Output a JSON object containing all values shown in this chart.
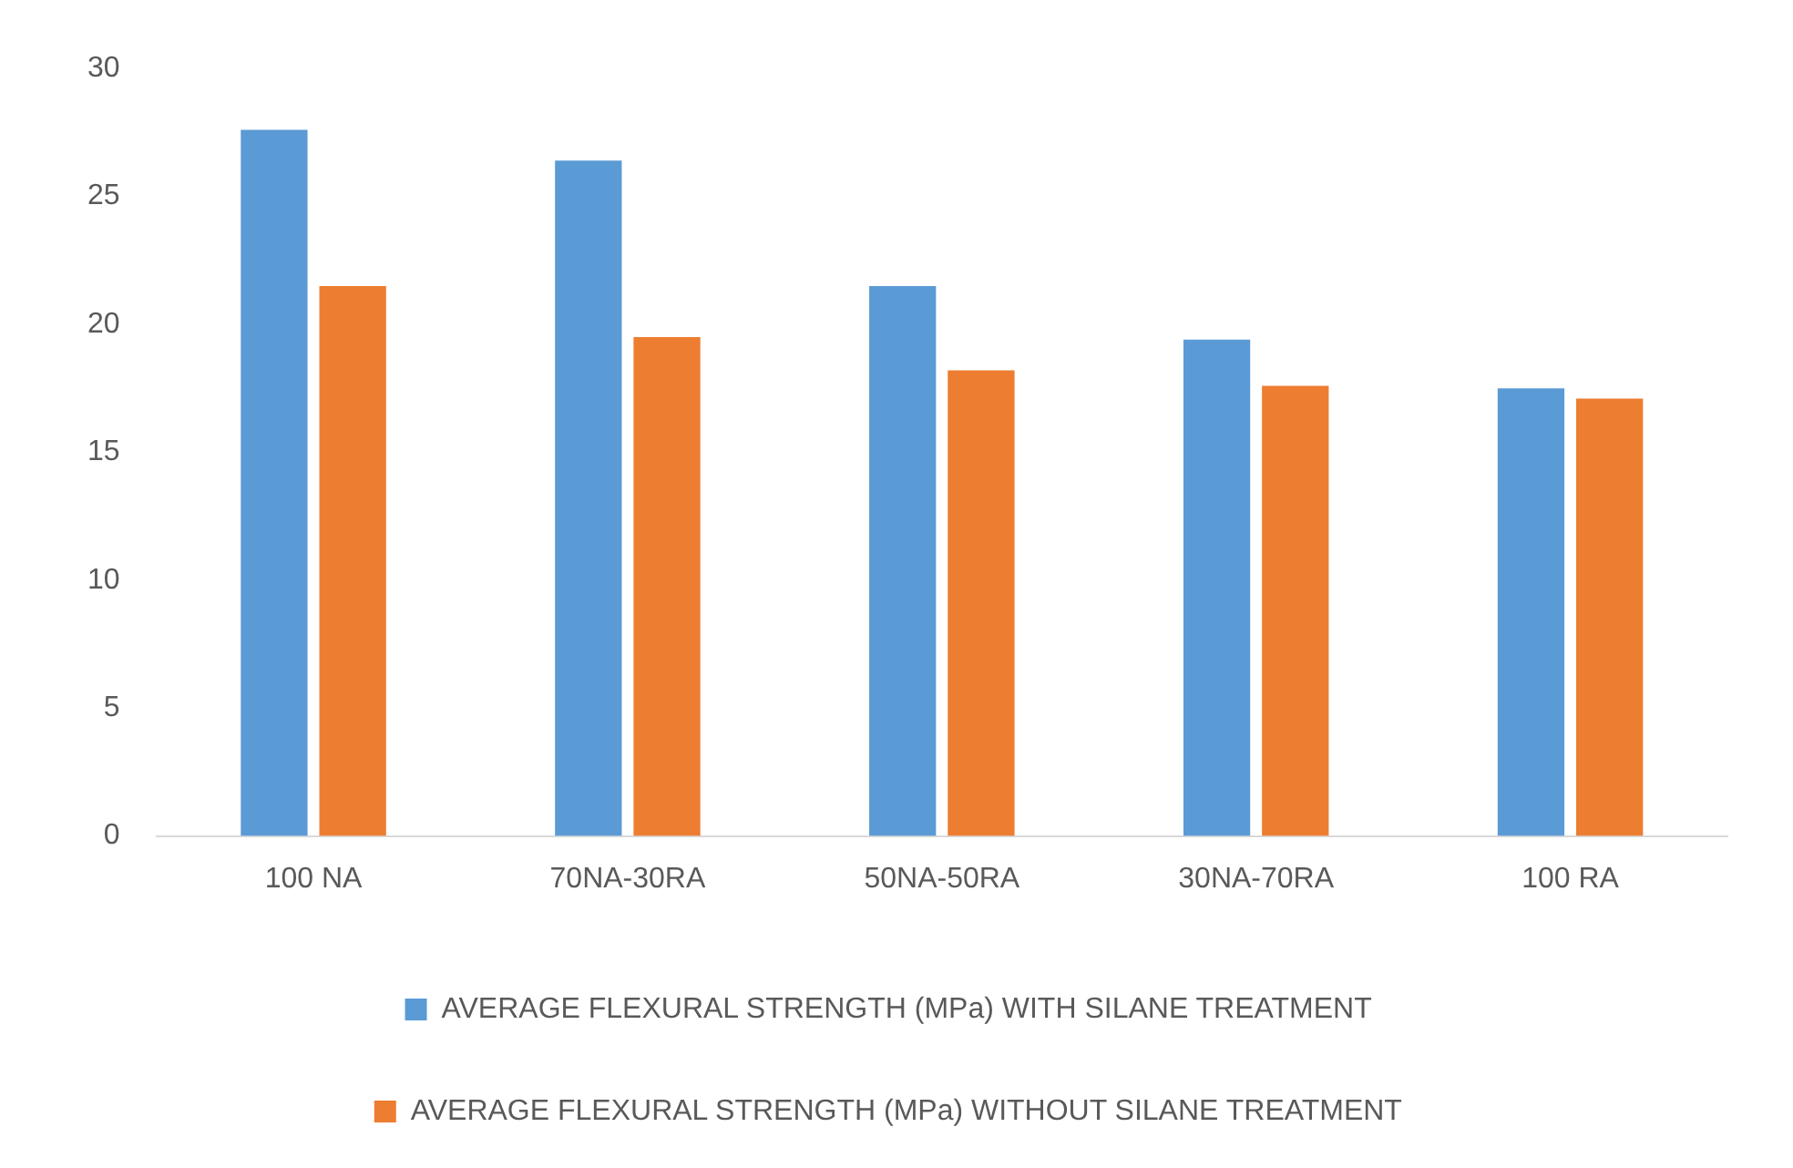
{
  "chart_data": {
    "type": "bar",
    "categories": [
      "100 NA",
      "70NA-30RA",
      "50NA-50RA",
      "30NA-70RA",
      "100 RA"
    ],
    "series": [
      {
        "name": "AVERAGE FLEXURAL STRENGTH (MPa) WITH SILANE TREATMENT",
        "color": "#5b9bd5",
        "values": [
          27.6,
          26.4,
          21.5,
          19.4,
          17.5
        ]
      },
      {
        "name": "AVERAGE FLEXURAL STRENGTH (MPa) WITHOUT SILANE TREATMENT",
        "color": "#ed7d31",
        "values": [
          21.5,
          19.5,
          18.2,
          17.6,
          17.1
        ]
      }
    ],
    "ylim": [
      0,
      30
    ],
    "yticks": [
      0,
      5,
      10,
      15,
      20,
      25,
      30
    ],
    "grid": false,
    "legend": "bottom"
  }
}
